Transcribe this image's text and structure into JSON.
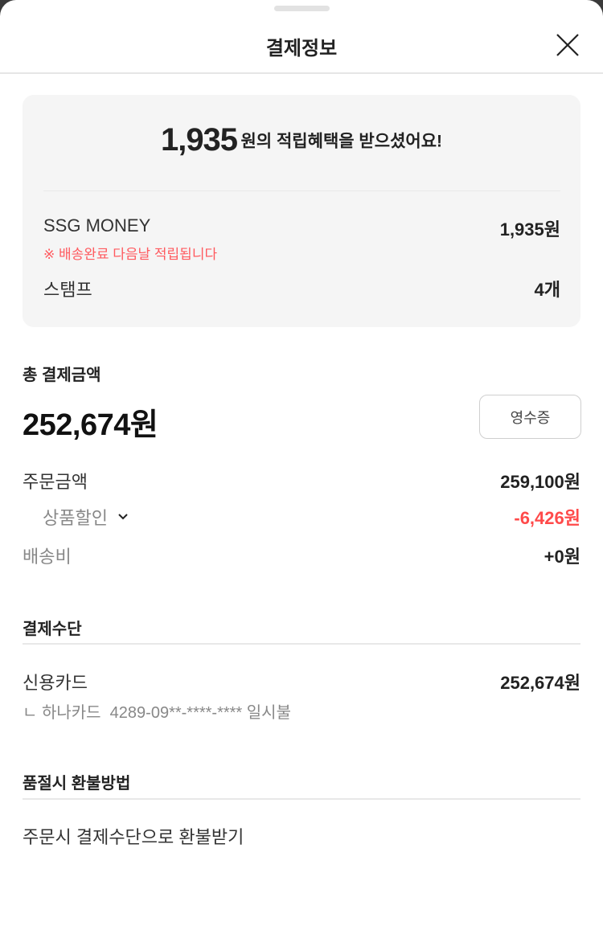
{
  "header": {
    "title": "결제정보",
    "close_icon": "close-icon"
  },
  "benefit": {
    "amount": "1,935",
    "message": "원의 적립혜택을 받으셨어요!",
    "ssg_money": {
      "label": "SSG MONEY",
      "value": "1,935원",
      "note": "※ 배송완료 다음날 적립됩니다"
    },
    "stamp": {
      "label": "스탬프",
      "value": "4개"
    }
  },
  "total": {
    "label": "총 결제금액",
    "amount": "252,674원",
    "receipt_button": "영수증"
  },
  "breakdown": {
    "order": {
      "label": "주문금액",
      "value": "259,100원"
    },
    "discount": {
      "label": "상품할인",
      "value": "-6,426원",
      "icon": "chevron-down-icon"
    },
    "shipping": {
      "label": "배송비",
      "value": "+0원"
    }
  },
  "payment": {
    "heading": "결제수단",
    "method": "신용카드",
    "amount": "252,674원",
    "detail": "ㄴ 하나카드  4289-09**-****-**** 일시불"
  },
  "refund": {
    "heading": "품절시 환불방법",
    "method": "주문시 결제수단으로 환불받기"
  },
  "colors": {
    "accent_red": "#ff4a4a",
    "card_bg": "#f5f5f5"
  }
}
